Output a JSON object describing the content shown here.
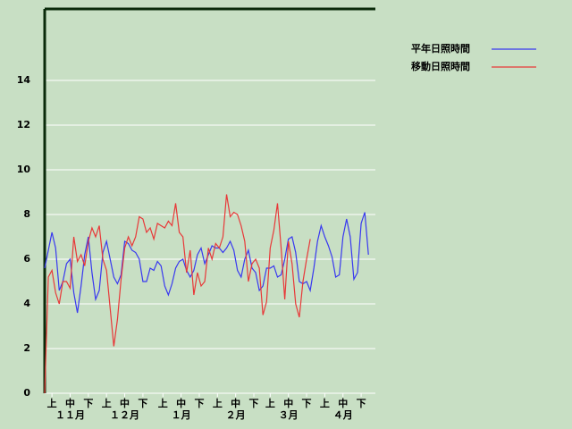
{
  "chart_data": {
    "type": "line",
    "series": [
      {
        "name": "平年日照時間",
        "color": "#3838f0",
        "values": [
          5.6,
          6.4,
          7.2,
          6.5,
          4.6,
          5.0,
          5.8,
          6.0,
          4.5,
          3.6,
          4.8,
          6.2,
          7.0,
          5.4,
          4.2,
          4.6,
          6.3,
          6.8,
          6.0,
          5.2,
          4.9,
          5.3,
          6.8,
          6.7,
          6.4,
          6.3,
          6.0,
          5.0,
          5.0,
          5.6,
          5.5,
          5.9,
          5.7,
          4.8,
          4.4,
          4.9,
          5.6,
          5.9,
          6.0,
          5.5,
          5.2,
          5.5,
          6.2,
          6.5,
          5.8,
          6.2,
          6.6,
          6.5,
          6.5,
          6.3,
          6.5,
          6.8,
          6.4,
          5.5,
          5.2,
          6.0,
          6.4,
          5.6,
          5.4,
          4.6,
          4.8,
          5.6,
          5.6,
          5.7,
          5.2,
          5.3,
          6.0,
          6.9,
          7.0,
          6.3,
          5.0,
          4.9,
          5.0,
          4.6,
          5.6,
          6.8,
          7.5,
          7.0,
          6.6,
          6.1,
          5.2,
          5.3,
          7.0,
          7.8,
          7.0,
          5.1,
          5.4,
          7.6,
          8.1,
          6.2
        ]
      },
      {
        "name": "移動日照時間",
        "color": "#e83838",
        "values": [
          0,
          5.2,
          5.5,
          4.5,
          4.0,
          5.0,
          5.0,
          4.7,
          7.0,
          5.9,
          6.2,
          5.7,
          6.8,
          7.4,
          7.0,
          7.5,
          6.0,
          5.5,
          3.8,
          2.1,
          3.3,
          5.1,
          6.5,
          7.0,
          6.6,
          7.0,
          7.9,
          7.8,
          7.2,
          7.4,
          6.9,
          7.6,
          7.5,
          7.4,
          7.7,
          7.5,
          8.5,
          7.2,
          7.0,
          5.4,
          6.4,
          4.4,
          5.4,
          4.8,
          5.0,
          6.5,
          6.0,
          6.7,
          6.5,
          7.0,
          8.9,
          7.9,
          8.1,
          8.0,
          7.5,
          6.8,
          5.0,
          5.8,
          6.0,
          5.6,
          3.5,
          4.1,
          6.5,
          7.3,
          8.5,
          6.5,
          4.2,
          6.8,
          5.8,
          4.0,
          3.4,
          5.0,
          6.0,
          6.9
        ]
      }
    ],
    "xlim": [
      0,
      91
    ],
    "xticks": [
      {
        "value": 2,
        "label": "上"
      },
      {
        "value": 7,
        "label": "中"
      },
      {
        "value": 12,
        "label": "下"
      },
      {
        "value": 17,
        "label": "上"
      },
      {
        "value": 22,
        "label": "中"
      },
      {
        "value": 27,
        "label": "下"
      },
      {
        "value": 32.5,
        "label": "上"
      },
      {
        "value": 37.5,
        "label": "中"
      },
      {
        "value": 42.5,
        "label": "下"
      },
      {
        "value": 47.5,
        "label": "上"
      },
      {
        "value": 52.5,
        "label": "中"
      },
      {
        "value": 57.5,
        "label": "下"
      },
      {
        "value": 62,
        "label": "上"
      },
      {
        "value": 67,
        "label": "中"
      },
      {
        "value": 72,
        "label": "下"
      },
      {
        "value": 77,
        "label": "上"
      },
      {
        "value": 82,
        "label": "中"
      },
      {
        "value": 87,
        "label": "下"
      }
    ],
    "month_ticks": [
      {
        "value": 7,
        "label": "１１月"
      },
      {
        "value": 22,
        "label": "１２月"
      },
      {
        "value": 37.5,
        "label": "１月"
      },
      {
        "value": 52.5,
        "label": "２月"
      },
      {
        "value": 67,
        "label": "３月"
      },
      {
        "value": 82,
        "label": "４月"
      }
    ],
    "ylim": [
      0,
      17.2
    ],
    "yticks": [
      0,
      2,
      4,
      6,
      8,
      10,
      12,
      14
    ],
    "grid": true
  }
}
